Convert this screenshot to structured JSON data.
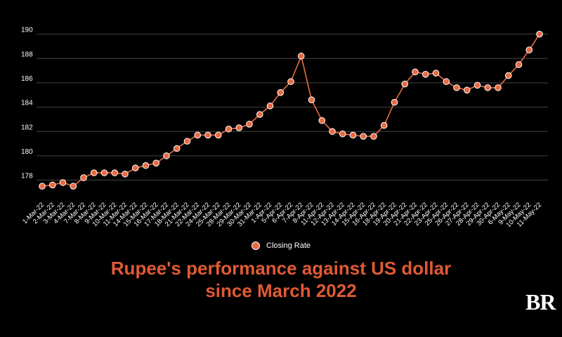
{
  "chart_data": {
    "type": "line",
    "title": "Rupee's performance against US dollar",
    "subtitle": "since March 2022",
    "xlabel": "",
    "ylabel": "",
    "ylim": [
      176.3,
      190.5
    ],
    "yticks": [
      178,
      180,
      182,
      184,
      186,
      188,
      190
    ],
    "grid": true,
    "legend": "bottom",
    "x_tick_labels": [
      "1-Mar-22",
      "2-Mar-22",
      "3-Mar-22",
      "4-Mar-22",
      "7-Mar-22",
      "8-Mar-22",
      "9-Mar-22",
      "10-Mar-22",
      "11-Mar-22",
      "14-Mar-22",
      "15-Mar-22",
      "16-Mar-22",
      "17-Mar-22",
      "18-Mar-22",
      "21-Mar-22",
      "22-Mar-22",
      "24-Mar-22",
      "25-Mar-22",
      "28-Mar-22",
      "29-Mar-22",
      "30-Mar-22",
      "31-Mar-22",
      "1-Apr-22",
      "5-Apr-22",
      "6-Apr-22",
      "7-Apr-22",
      "8-Apr-22",
      "11-Apr-22",
      "12-Apr-22",
      "13-Apr-22",
      "14-Apr-22",
      "15-Apr-22",
      "16-Apr-22",
      "18-Apr-22",
      "19-Apr-22",
      "20-Apr-22",
      "21-Apr-22",
      "22-Apr-22",
      "23-Apr-22",
      "25-Apr-22",
      "26-Apr-22",
      "27-Apr-22",
      "28-Apr-22",
      "29-Apr-22",
      "30-Apr-22",
      "6-May-22",
      "9-May-22",
      "10-May-22",
      "11-May-22"
    ],
    "series": [
      {
        "name": "Closing Rate",
        "color": "#e86a43",
        "values": [
          177.5,
          177.6,
          177.8,
          177.5,
          178.2,
          178.6,
          178.6,
          178.6,
          178.5,
          179.0,
          179.2,
          179.4,
          180.0,
          180.6,
          181.2,
          181.7,
          181.7,
          181.7,
          182.2,
          182.3,
          182.6,
          183.4,
          184.1,
          185.2,
          186.1,
          188.2,
          184.6,
          182.9,
          182.0,
          181.8,
          181.7,
          181.6,
          181.6,
          182.5,
          184.4,
          185.9,
          186.9,
          186.7,
          186.8,
          186.1,
          185.6,
          185.4,
          185.8,
          185.6,
          185.6,
          186.6,
          187.5,
          188.7,
          190.0
        ]
      }
    ]
  },
  "legend": {
    "label": "Closing Rate"
  },
  "logo": {
    "text": "BR"
  }
}
